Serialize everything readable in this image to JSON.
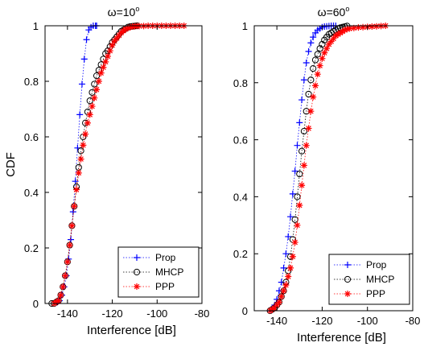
{
  "chart_data": [
    {
      "type": "line",
      "title_prefix": "ω=10",
      "title_sup": "o",
      "xlabel": "Interference [dB]",
      "ylabel": "CDF",
      "xlim": [
        -150,
        -80
      ],
      "ylim": [
        0,
        1
      ],
      "xticks": [
        -140,
        -120,
        -100,
        -80
      ],
      "yticks": [
        0,
        0.2,
        0.4,
        0.6,
        0.8,
        1
      ],
      "grid": false,
      "legend_position": "bottom-right",
      "series": [
        {
          "name": "Prop",
          "color": "#0000ff",
          "marker": "plus",
          "x": [
            -144.5,
            -143.5,
            -142.5,
            -141.5,
            -140.5,
            -139.5,
            -138.5,
            -137.5,
            -136.5,
            -135.5,
            -134.5,
            -133.5,
            -132.5,
            -131.5,
            -130.5,
            -129.5,
            -128.5,
            -127.5,
            -127
          ],
          "y": [
            0.005,
            0.01,
            0.03,
            0.06,
            0.1,
            0.16,
            0.23,
            0.33,
            0.44,
            0.56,
            0.68,
            0.79,
            0.88,
            0.95,
            0.985,
            0.995,
            1.0,
            1.0,
            1.0
          ]
        },
        {
          "name": "MHCP",
          "color": "#000000",
          "marker": "circle",
          "x": [
            -147,
            -146,
            -145,
            -144,
            -143,
            -142,
            -141,
            -140,
            -139,
            -138,
            -137,
            -136,
            -135,
            -134,
            -133,
            -132,
            -131,
            -130,
            -129,
            -128,
            -127,
            -126,
            -125,
            -124,
            -123,
            -122,
            -121,
            -120,
            -119,
            -118,
            -117,
            -116,
            -115,
            -114,
            -113,
            -112,
            -111,
            -110,
            -109
          ],
          "y": [
            0.0,
            0.0,
            0.005,
            0.01,
            0.03,
            0.06,
            0.1,
            0.15,
            0.21,
            0.28,
            0.35,
            0.42,
            0.49,
            0.55,
            0.6,
            0.65,
            0.69,
            0.73,
            0.76,
            0.79,
            0.82,
            0.84,
            0.86,
            0.88,
            0.9,
            0.91,
            0.925,
            0.94,
            0.95,
            0.96,
            0.97,
            0.98,
            0.985,
            0.99,
            0.995,
            0.997,
            0.998,
            0.999,
            1.0
          ]
        },
        {
          "name": "PPP",
          "color": "#ff0000",
          "marker": "star",
          "x": [
            -146,
            -145,
            -144,
            -143,
            -142,
            -141,
            -140,
            -139,
            -138,
            -137,
            -136,
            -135,
            -134,
            -133,
            -132,
            -131,
            -130,
            -129,
            -128,
            -127,
            -126,
            -125,
            -124,
            -123,
            -122,
            -121,
            -120,
            -119,
            -118,
            -117,
            -116,
            -115,
            -114,
            -113,
            -112,
            -111,
            -110,
            -109,
            -108,
            -106,
            -104,
            -102,
            -100,
            -98,
            -96,
            -94,
            -92,
            -90,
            -88
          ],
          "y": [
            0.0,
            0.005,
            0.01,
            0.03,
            0.06,
            0.1,
            0.15,
            0.21,
            0.28,
            0.35,
            0.41,
            0.47,
            0.52,
            0.57,
            0.61,
            0.65,
            0.68,
            0.71,
            0.74,
            0.77,
            0.8,
            0.83,
            0.85,
            0.87,
            0.89,
            0.91,
            0.93,
            0.945,
            0.955,
            0.965,
            0.975,
            0.982,
            0.988,
            0.992,
            0.995,
            0.997,
            0.998,
            0.999,
            0.999,
            0.999,
            1.0,
            1.0,
            1.0,
            1.0,
            1.0,
            1.0,
            1.0,
            1.0,
            1.0
          ]
        }
      ]
    },
    {
      "type": "line",
      "title_prefix": "ω=60",
      "title_sup": "o",
      "xlabel": "Interference [dB]",
      "ylabel": "",
      "xlim": [
        -150,
        -80
      ],
      "ylim": [
        0,
        1
      ],
      "xticks": [
        -140,
        -120,
        -100,
        -80
      ],
      "yticks": [
        0,
        0.2,
        0.4,
        0.6,
        0.8,
        1
      ],
      "grid": false,
      "legend_position": "bottom-right",
      "series": [
        {
          "name": "Prop",
          "color": "#0000ff",
          "marker": "plus",
          "x": [
            -143,
            -142,
            -141,
            -140,
            -139,
            -138,
            -137,
            -136,
            -135,
            -134,
            -133,
            -132,
            -131,
            -130,
            -129,
            -128,
            -127,
            -126,
            -125,
            -124,
            -123,
            -122,
            -121,
            -120,
            -119,
            -118,
            -117,
            -116,
            -115,
            -114
          ],
          "y": [
            0.0,
            0.01,
            0.02,
            0.04,
            0.07,
            0.1,
            0.15,
            0.2,
            0.26,
            0.33,
            0.41,
            0.49,
            0.58,
            0.66,
            0.74,
            0.81,
            0.87,
            0.91,
            0.94,
            0.96,
            0.975,
            0.985,
            0.99,
            0.995,
            0.997,
            0.998,
            0.999,
            1.0,
            1.0,
            1.0
          ]
        },
        {
          "name": "MHCP",
          "color": "#000000",
          "marker": "circle",
          "x": [
            -143,
            -142,
            -141,
            -140,
            -139,
            -138,
            -137,
            -136,
            -135,
            -134,
            -133,
            -132,
            -131,
            -130,
            -129,
            -128,
            -127,
            -126,
            -125,
            -124,
            -123,
            -122,
            -121,
            -120,
            -119,
            -118,
            -117,
            -116,
            -115,
            -114,
            -113,
            -112,
            -111,
            -110,
            -109
          ],
          "y": [
            0.0,
            0.005,
            0.01,
            0.02,
            0.03,
            0.05,
            0.07,
            0.1,
            0.14,
            0.19,
            0.25,
            0.32,
            0.4,
            0.48,
            0.56,
            0.63,
            0.7,
            0.76,
            0.81,
            0.85,
            0.88,
            0.9,
            0.92,
            0.935,
            0.95,
            0.96,
            0.97,
            0.975,
            0.98,
            0.985,
            0.99,
            0.993,
            0.995,
            0.997,
            0.999
          ]
        },
        {
          "name": "PPP",
          "color": "#ff0000",
          "marker": "star",
          "x": [
            -143,
            -142,
            -141,
            -140,
            -139,
            -138,
            -137,
            -136,
            -135,
            -134,
            -133,
            -132,
            -131,
            -130,
            -129,
            -128,
            -127,
            -126,
            -125,
            -124,
            -123,
            -122,
            -121,
            -120,
            -119,
            -118,
            -117,
            -116,
            -115,
            -114,
            -113,
            -112,
            -111,
            -110,
            -109,
            -108,
            -106,
            -104,
            -102,
            -100,
            -98,
            -96,
            -94,
            -92
          ],
          "y": [
            0.0,
            0.005,
            0.01,
            0.02,
            0.03,
            0.05,
            0.07,
            0.09,
            0.12,
            0.15,
            0.19,
            0.24,
            0.3,
            0.37,
            0.44,
            0.51,
            0.58,
            0.64,
            0.7,
            0.75,
            0.79,
            0.83,
            0.86,
            0.885,
            0.905,
            0.92,
            0.935,
            0.945,
            0.955,
            0.965,
            0.97,
            0.975,
            0.98,
            0.985,
            0.988,
            0.99,
            0.992,
            0.994,
            0.995,
            0.996,
            0.997,
            0.998,
            0.999,
            1.0
          ]
        }
      ]
    }
  ]
}
